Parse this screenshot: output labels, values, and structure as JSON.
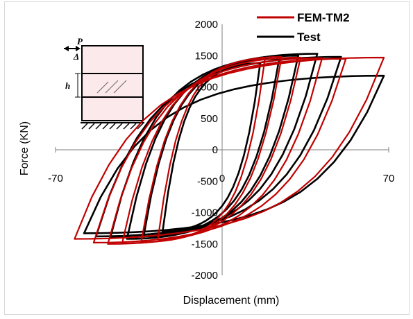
{
  "chart_data": {
    "type": "line",
    "title": "",
    "xlabel": "Displacement (mm)",
    "ylabel": "Force (KN)",
    "xlim": [
      -70,
      70
    ],
    "ylim": [
      -2000,
      2000
    ],
    "x_ticks": [
      -70,
      0,
      70
    ],
    "x_tick_labels": [
      "-70",
      "0",
      "70"
    ],
    "y_ticks": [
      2000,
      1500,
      1000,
      500,
      0,
      -500,
      -1000,
      -1500,
      -2000
    ],
    "y_tick_labels": [
      "2000",
      "1500",
      "1000",
      "500",
      "0",
      "-500",
      "-1000",
      "-1500",
      "-2000"
    ],
    "grid": false,
    "legend_position": "top-right",
    "series": [
      {
        "name": "FEM-TM2",
        "color": "#c00000",
        "cycles": [
          {
            "xmax": 18,
            "ymax": 1450,
            "xmin": -27,
            "ymin": -1430
          },
          {
            "xmax": 25,
            "ymax": 1480,
            "xmin": -34,
            "ymin": -1470
          },
          {
            "xmax": 33,
            "ymax": 1470,
            "xmin": -42,
            "ymin": -1490
          },
          {
            "xmax": 42,
            "ymax": 1460,
            "xmin": -48,
            "ymin": -1500
          },
          {
            "xmax": 52,
            "ymax": 1450,
            "xmin": -54,
            "ymin": -1480
          },
          {
            "xmax": 68,
            "ymax": 1470,
            "xmin": -62,
            "ymin": -1420
          }
        ]
      },
      {
        "name": "Test",
        "color": "#000000",
        "cycles": [
          {
            "xmax": 16,
            "ymax": 1380,
            "xmin": -25,
            "ymin": -1300
          },
          {
            "xmax": 24,
            "ymax": 1450,
            "xmin": -33,
            "ymin": -1380
          },
          {
            "xmax": 32,
            "ymax": 1500,
            "xmin": -40,
            "ymin": -1420
          },
          {
            "xmax": 40,
            "ymax": 1530,
            "xmin": -47,
            "ymin": -1400
          },
          {
            "xmax": 50,
            "ymax": 1480,
            "xmin": -53,
            "ymin": -1380
          },
          {
            "xmax": 68,
            "ymax": 1180,
            "xmin": -58,
            "ymin": -1330
          }
        ]
      }
    ]
  },
  "inset": {
    "load_label": "P",
    "disp_label": "Δ",
    "height_label": "h"
  }
}
